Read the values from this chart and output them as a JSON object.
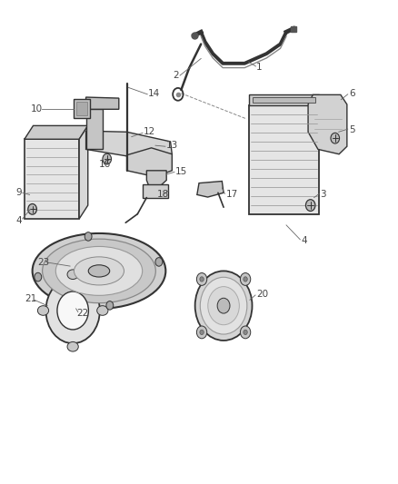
{
  "background_color": "#ffffff",
  "figsize": [
    4.38,
    5.33
  ],
  "dpi": 100,
  "line_color": "#333333",
  "text_color": "#444444",
  "label_fontsize": 7.5
}
